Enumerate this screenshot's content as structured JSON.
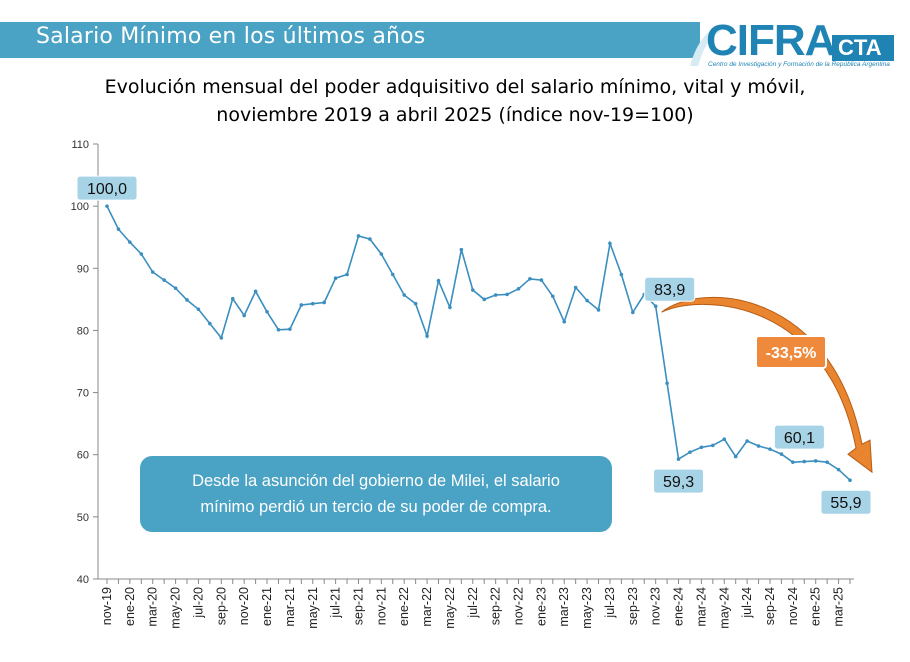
{
  "header": {
    "banner_title": "Salario Mínimo en los últimos años",
    "logo_main": "CIFRA",
    "logo_suffix": "CTA",
    "logo_subtitle": "Centro de Investigación y Formación de la República Argentina"
  },
  "colors": {
    "banner": "#4aa3c4",
    "line": "#3a8fc0",
    "label_fill": "#a7d3e6",
    "arrow": "#e8852e",
    "badge": "#ef8a3c"
  },
  "note": {
    "line1": "Desde la asunción del gobierno de Milei, el salario",
    "line2": "mínimo perdió un tercio de su poder de compra."
  },
  "chart_data": {
    "type": "line",
    "title": "Evolución mensual del poder adquisitivo del salario mínimo, vital y móvil,",
    "subtitle": "noviembre 2019 a abril 2025 (índice nov-19=100)",
    "ylim": [
      40,
      110
    ],
    "yticks": [
      40,
      50,
      60,
      70,
      80,
      90,
      100,
      110
    ],
    "x": [
      "nov-19",
      "dic-19",
      "ene-20",
      "feb-20",
      "mar-20",
      "abr-20",
      "may-20",
      "jun-20",
      "jul-20",
      "ago-20",
      "sep-20",
      "oct-20",
      "nov-20",
      "dic-20",
      "ene-21",
      "feb-21",
      "mar-21",
      "abr-21",
      "may-21",
      "jun-21",
      "jul-21",
      "ago-21",
      "sep-21",
      "oct-21",
      "nov-21",
      "dic-21",
      "ene-22",
      "feb-22",
      "mar-22",
      "abr-22",
      "may-22",
      "jun-22",
      "jul-22",
      "ago-22",
      "sep-22",
      "oct-22",
      "nov-22",
      "dic-22",
      "ene-23",
      "feb-23",
      "mar-23",
      "abr-23",
      "may-23",
      "jun-23",
      "jul-23",
      "ago-23",
      "sep-23",
      "oct-23",
      "nov-23",
      "dic-23",
      "ene-24",
      "feb-24",
      "mar-24",
      "abr-24",
      "may-24",
      "jun-24",
      "jul-24",
      "ago-24",
      "sep-24",
      "oct-24",
      "nov-24",
      "dic-24",
      "ene-25",
      "feb-25",
      "mar-25",
      "abr-25"
    ],
    "tick_labels": [
      "nov-19",
      "ene-20",
      "mar-20",
      "may-20",
      "jul-20",
      "sep-20",
      "nov-20",
      "ene-21",
      "mar-21",
      "may-21",
      "jul-21",
      "sep-21",
      "nov-21",
      "ene-22",
      "mar-22",
      "may-22",
      "jul-22",
      "sep-22",
      "nov-22",
      "ene-23",
      "mar-23",
      "may-23",
      "jul-23",
      "sep-23",
      "nov-23",
      "ene-24",
      "mar-24",
      "may-24",
      "jul-24",
      "sep-24",
      "nov-24",
      "ene-25",
      "mar-25"
    ],
    "values": [
      100.0,
      96.3,
      94.2,
      92.3,
      89.4,
      88.1,
      86.8,
      84.9,
      83.4,
      81.1,
      78.8,
      85.1,
      82.4,
      86.3,
      83.0,
      80.1,
      80.2,
      84.1,
      84.3,
      84.5,
      88.4,
      89.0,
      95.2,
      94.7,
      92.3,
      89.0,
      85.7,
      84.3,
      79.1,
      88.0,
      83.7,
      93.0,
      86.5,
      85.0,
      85.7,
      85.8,
      86.7,
      88.3,
      88.1,
      85.5,
      81.4,
      86.9,
      84.8,
      83.3,
      94.0,
      89.0,
      82.9,
      85.8,
      83.9,
      71.5,
      59.3,
      60.4,
      61.2,
      61.5,
      62.5,
      59.7,
      62.2,
      61.4,
      60.9,
      60.1,
      58.8,
      58.9,
      59.0,
      58.8,
      57.6,
      55.9
    ],
    "point_labels": [
      {
        "x": "nov-19",
        "value": 100.0,
        "text": "100,0"
      },
      {
        "x": "nov-23",
        "value": 83.9,
        "text": "83,9"
      },
      {
        "x": "ene-24",
        "value": 59.3,
        "text": "59,3"
      },
      {
        "x": "oct-24",
        "value": 60.1,
        "text": "60,1"
      },
      {
        "x": "abr-25",
        "value": 55.9,
        "text": "55,9"
      }
    ],
    "change_badge": "-33,5%",
    "grid": false
  }
}
